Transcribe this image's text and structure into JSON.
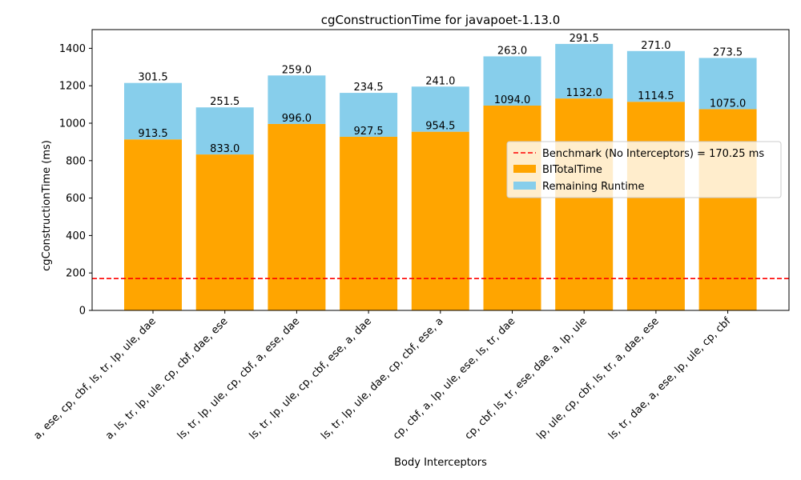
{
  "chart_data": {
    "type": "bar",
    "stacked": true,
    "title": "cgConstructionTime for javapoet-1.13.0",
    "xlabel": "Body Interceptors",
    "ylabel": "cgConstructionTime (ms)",
    "ylim": [
      0,
      1500
    ],
    "yticks": [
      0,
      200,
      400,
      600,
      800,
      1000,
      1200,
      1400
    ],
    "grid": false,
    "legend_position": "center-right",
    "categories": [
      "a, ese, cp, cbf, ls, tr, lp, ule, dae",
      "a, ls, tr, lp, ule, cp, cbf, dae, ese",
      "ls, tr, lp, ule, cp, cbf, a, ese, dae",
      "ls, tr, lp, ule, cp, cbf, ese, a, dae",
      "ls, tr, lp, ule, dae, cp, cbf, ese, a",
      "cp, cbf, a, lp, ule, ese, ls, tr, dae",
      "cp, cbf, ls, tr, ese, dae, a, lp, ule",
      "lp, ule, cp, cbf, ls, tr, a, dae, ese",
      "ls, tr, dae, a, ese, lp, ule, cp, cbf"
    ],
    "series": [
      {
        "name": "BITotalTime",
        "color": "#FFA500",
        "values": [
          913.5,
          833.0,
          996.0,
          927.5,
          954.5,
          1094.0,
          1132.0,
          1114.5,
          1075.0
        ],
        "labels": [
          "913.5",
          "833.0",
          "996.0",
          "927.5",
          "954.5",
          "1094.0",
          "1132.0",
          "1114.5",
          "1075.0"
        ]
      },
      {
        "name": "Remaining Runtime",
        "color": "#87CEEB",
        "values": [
          301.5,
          251.5,
          259.0,
          234.5,
          241.0,
          263.0,
          291.5,
          271.0,
          273.5
        ],
        "labels": [
          "301.5",
          "251.5",
          "259.0",
          "234.5",
          "241.0",
          "263.0",
          "291.5",
          "271.0",
          "273.5"
        ]
      }
    ],
    "benchmark": {
      "name": "Benchmark (No Interceptors) = 170.25 ms",
      "value": 170.25,
      "color": "#FF0000",
      "style": "dashed"
    }
  }
}
